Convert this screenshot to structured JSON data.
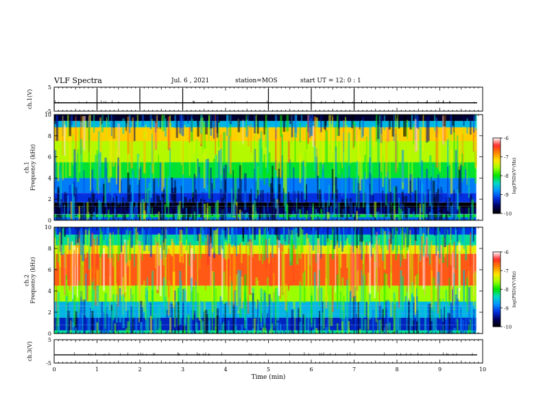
{
  "header": {
    "title": "VLF Spectra",
    "date": "Jul. 6 , 2021",
    "station": "station=MOS",
    "start": "start UT = 12: 0 : 1"
  },
  "colors": {
    "spectrogram_scale": [
      "#ffffff",
      "#ff2a2a",
      "#ff8800",
      "#ffe600",
      "#9cff00",
      "#00e400",
      "#00d8c8",
      "#0096ff",
      "#0030e0",
      "#000060",
      "#000000"
    ]
  },
  "chart_data": [
    {
      "type": "line",
      "name": "ch1-waveform",
      "ylabel": "ch.1(V)",
      "yticks": [
        "5",
        "-5"
      ],
      "ylim": [
        -5,
        5
      ],
      "xlim": [
        0,
        10
      ],
      "baseline_value": -1.5,
      "spike_times_min": [
        0.0,
        1.0,
        2.0,
        3.0,
        5.0,
        6.0,
        7.0
      ]
    },
    {
      "type": "heatmap",
      "name": "ch1-spectrogram",
      "ylabel": "ch.1\nFrequency (kHz)",
      "yticks": [
        "0",
        "2",
        "4",
        "6",
        "8",
        "10"
      ],
      "ylim": [
        0,
        10
      ],
      "xlim": [
        0,
        10
      ],
      "data_end_min": 9.85,
      "bands_khz": [
        {
          "from": 0.0,
          "to": 0.3,
          "level": -9.0
        },
        {
          "from": 0.3,
          "to": 0.6,
          "level": -8.1
        },
        {
          "from": 0.6,
          "to": 1.2,
          "level": -9.6
        },
        {
          "from": 1.2,
          "to": 1.7,
          "level": -10.0
        },
        {
          "from": 1.7,
          "to": 2.6,
          "level": -9.2
        },
        {
          "from": 2.6,
          "to": 4.0,
          "level": -8.9
        },
        {
          "from": 4.0,
          "to": 5.5,
          "level": -8.1
        },
        {
          "from": 5.5,
          "to": 7.5,
          "level": -7.5
        },
        {
          "from": 7.5,
          "to": 8.8,
          "level": -7.1
        },
        {
          "from": 8.8,
          "to": 9.4,
          "level": -8.6
        },
        {
          "from": 9.4,
          "to": 10.0,
          "level": -9.8
        }
      ],
      "colorbar": {
        "label": "log(PSD)(V²/Hz)",
        "ticks": [
          "-6",
          "-7",
          "-8",
          "-9",
          "-10"
        ],
        "range": [
          -10,
          -6
        ]
      }
    },
    {
      "type": "heatmap",
      "name": "ch2-spectrogram",
      "ylabel": "ch.2\nFrequency (kHz)",
      "yticks": [
        "0",
        "2",
        "4",
        "6",
        "8",
        "10"
      ],
      "ylim": [
        0,
        10
      ],
      "xlim": [
        0,
        10
      ],
      "data_end_min": 9.85,
      "bands_khz": [
        {
          "from": 0.0,
          "to": 0.3,
          "level": -8.3
        },
        {
          "from": 0.3,
          "to": 1.5,
          "level": -9.3
        },
        {
          "from": 1.5,
          "to": 3.0,
          "level": -8.6
        },
        {
          "from": 3.0,
          "to": 4.5,
          "level": -7.6
        },
        {
          "from": 4.5,
          "to": 7.5,
          "level": -6.6
        },
        {
          "from": 7.5,
          "to": 8.3,
          "level": -7.3
        },
        {
          "from": 8.3,
          "to": 9.3,
          "level": -8.3
        },
        {
          "from": 9.3,
          "to": 10.0,
          "level": -9.2
        }
      ],
      "colorbar": {
        "label": "log(PSD)(V²/Hz)",
        "ticks": [
          "-6",
          "-7",
          "-8",
          "-9",
          "-10"
        ],
        "range": [
          -10,
          -6
        ]
      }
    },
    {
      "type": "line",
      "name": "ch3-waveform",
      "ylabel": "ch.3(V)",
      "yticks": [
        "5",
        "-5"
      ],
      "ylim": [
        -5,
        5
      ],
      "xlim": [
        0,
        10
      ],
      "baseline_value": -1.5,
      "xlabel": "Time (min)",
      "xticks": [
        "0",
        "1",
        "2",
        "3",
        "4",
        "5",
        "6",
        "7",
        "8",
        "9",
        "10"
      ]
    }
  ]
}
